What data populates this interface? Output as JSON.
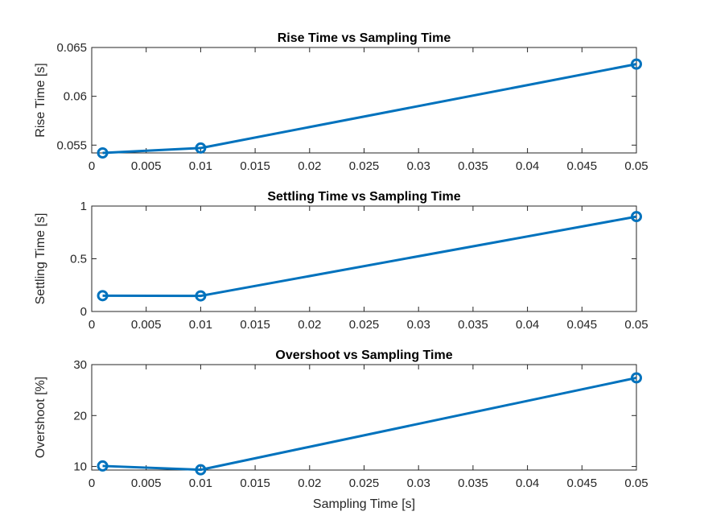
{
  "colors": {
    "series": "#0072BD",
    "axis": "#262626",
    "grid": "#dedede"
  },
  "chart_data": [
    {
      "type": "line",
      "title": "Rise Time vs Sampling Time",
      "xlabel": "",
      "ylabel": "Rise Time [s]",
      "xlim": [
        0,
        0.05
      ],
      "ylim": [
        0.0542,
        0.065
      ],
      "grid": true,
      "x": [
        0.001,
        0.01,
        0.05
      ],
      "series": [
        {
          "values": [
            0.0542,
            0.0547,
            0.0633
          ],
          "marker": "circle"
        }
      ],
      "xticks": [
        0,
        0.005,
        0.01,
        0.015,
        0.02,
        0.025,
        0.03,
        0.035,
        0.04,
        0.045,
        0.05
      ],
      "xtick_labels": [
        "0",
        "0.005",
        "0.01",
        "0.015",
        "0.02",
        "0.025",
        "0.03",
        "0.035",
        "0.04",
        "0.045",
        "0.05"
      ],
      "yticks": [
        0.055,
        0.06,
        0.065
      ],
      "ytick_labels": [
        "0.055",
        "0.06",
        "0.065"
      ]
    },
    {
      "type": "line",
      "title": "Settling Time vs Sampling Time",
      "xlabel": "",
      "ylabel": "Settling Time [s]",
      "xlim": [
        0,
        0.05
      ],
      "ylim": [
        0,
        1
      ],
      "grid": true,
      "x": [
        0.001,
        0.01,
        0.05
      ],
      "series": [
        {
          "values": [
            0.15,
            0.148,
            0.9
          ],
          "marker": "circle"
        }
      ],
      "xticks": [
        0,
        0.005,
        0.01,
        0.015,
        0.02,
        0.025,
        0.03,
        0.035,
        0.04,
        0.045,
        0.05
      ],
      "xtick_labels": [
        "0",
        "0.005",
        "0.01",
        "0.015",
        "0.02",
        "0.025",
        "0.03",
        "0.035",
        "0.04",
        "0.045",
        "0.05"
      ],
      "yticks": [
        0,
        0.5,
        1
      ],
      "ytick_labels": [
        "0",
        "0.5",
        "1"
      ]
    },
    {
      "type": "line",
      "title": "Overshoot vs Sampling Time",
      "xlabel": "Sampling Time [s]",
      "ylabel": "Overshoot [%]",
      "xlim": [
        0,
        0.05
      ],
      "ylim": [
        9.3,
        30
      ],
      "grid": true,
      "x": [
        0.001,
        0.01,
        0.05
      ],
      "series": [
        {
          "values": [
            10.1,
            9.35,
            27.4
          ],
          "marker": "circle"
        }
      ],
      "xticks": [
        0,
        0.005,
        0.01,
        0.015,
        0.02,
        0.025,
        0.03,
        0.035,
        0.04,
        0.045,
        0.05
      ],
      "xtick_labels": [
        "0",
        "0.005",
        "0.01",
        "0.015",
        "0.02",
        "0.025",
        "0.03",
        "0.035",
        "0.04",
        "0.045",
        "0.05"
      ],
      "yticks": [
        10,
        20,
        30
      ],
      "ytick_labels": [
        "10",
        "20",
        "30"
      ]
    }
  ]
}
